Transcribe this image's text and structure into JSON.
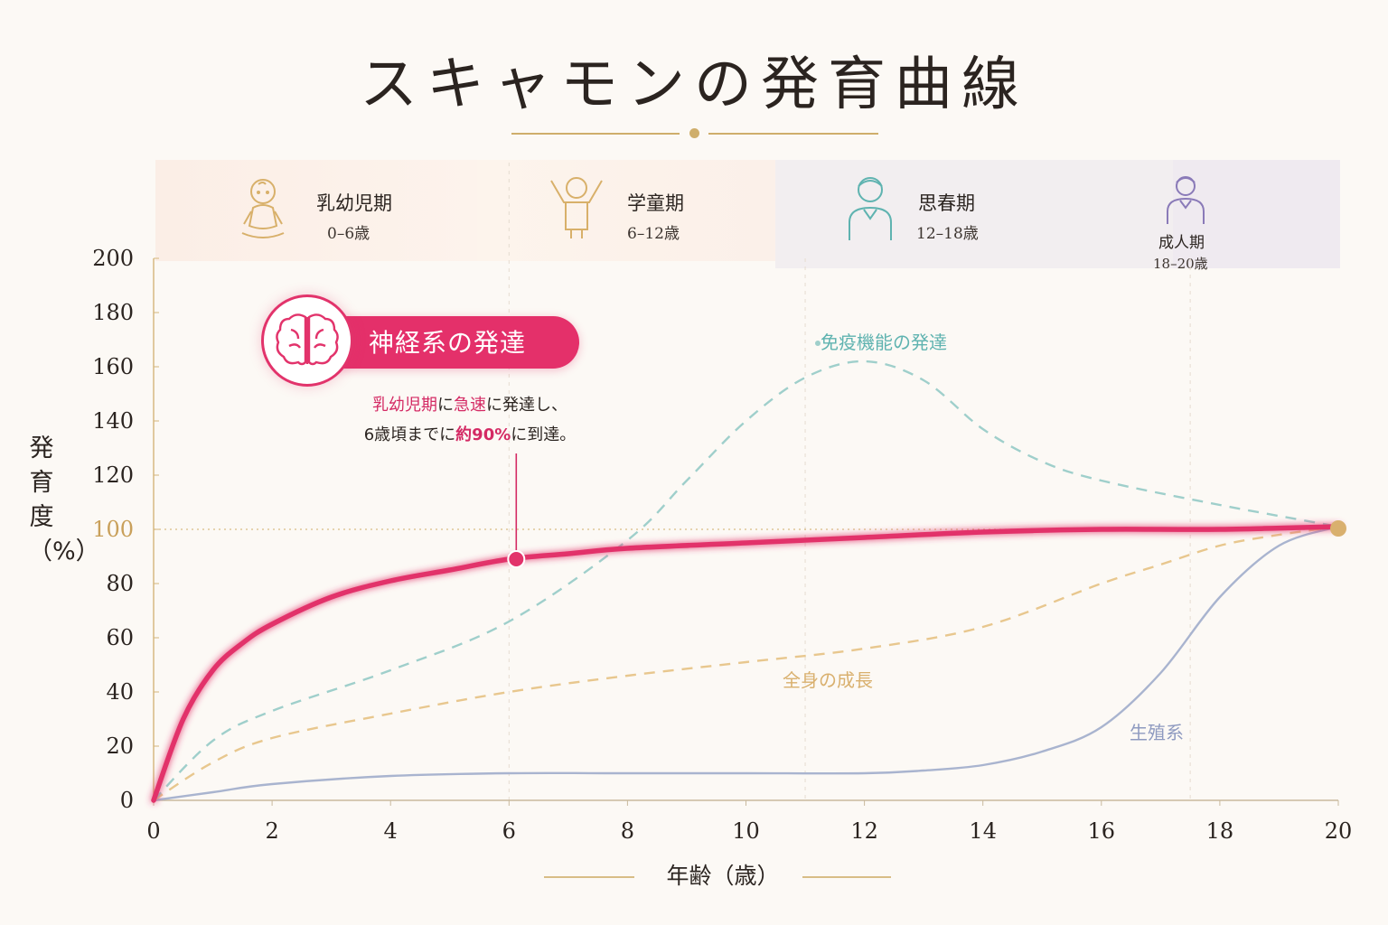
{
  "title": "スキャモンの発育曲線",
  "stages": [
    {
      "title": "乳幼児期",
      "range": "0–6歳",
      "icon": "baby-icon",
      "color": "#d8b06a"
    },
    {
      "title": "学童期",
      "range": "6–12歳",
      "icon": "child-icon",
      "color": "#d8b06a"
    },
    {
      "title": "思春期",
      "range": "12–18歳",
      "icon": "teen-icon",
      "color": "#5fb3b0"
    },
    {
      "title": "成人期",
      "range": "18–20歳",
      "icon": "adult-icon",
      "color": "#8a7ab8"
    }
  ],
  "callout": {
    "heading": "神経系の発達",
    "line1_a": "乳幼児期",
    "line1_b": "に",
    "line1_c": "急速",
    "line1_d": "に発達し、",
    "line2_a": "6歳頃までに",
    "line2_b": "約90%",
    "line2_c": "に到達。",
    "icon": "brain-icon"
  },
  "chart_data": {
    "type": "line",
    "title": "スキャモンの発育曲線",
    "xlabel": "年齢（歳）",
    "ylabel": "発育度（%）",
    "xlim": [
      0,
      20
    ],
    "ylim": [
      0,
      200
    ],
    "x_ticks": [
      0,
      2,
      4,
      6,
      8,
      10,
      12,
      14,
      16,
      18,
      20
    ],
    "y_ticks": [
      0,
      20,
      40,
      60,
      80,
      100,
      120,
      140,
      160,
      180,
      200
    ],
    "reference_line": 100,
    "highlight_point": {
      "x": 6,
      "y": 89
    },
    "endpoint": {
      "x": 20,
      "y": 101
    },
    "series": [
      {
        "name": "神経系の発達",
        "color": "#e2336b",
        "style": "solid",
        "x": [
          0,
          0.5,
          1,
          1.5,
          2,
          3,
          4,
          5,
          6,
          7,
          8,
          10,
          12,
          14,
          16,
          18,
          20
        ],
        "y": [
          0,
          30,
          48,
          58,
          65,
          75,
          81,
          85,
          89,
          91,
          93,
          95,
          97,
          99,
          100,
          100,
          101
        ]
      },
      {
        "name": "免疫機能の発達",
        "color": "#9fcfcb",
        "style": "dashed",
        "x": [
          0,
          1,
          2,
          4,
          6,
          8,
          9,
          10,
          11,
          12,
          13,
          14,
          15,
          16,
          18,
          20
        ],
        "y": [
          0,
          22,
          33,
          48,
          66,
          96,
          118,
          140,
          156,
          162,
          155,
          137,
          125,
          118,
          109,
          101
        ]
      },
      {
        "name": "全身の成長",
        "color": "#e8c78e",
        "style": "dashed",
        "x": [
          0,
          1,
          2,
          4,
          6,
          8,
          10,
          12,
          14,
          16,
          17,
          18,
          19,
          20
        ],
        "y": [
          0,
          14,
          23,
          32,
          40,
          46,
          51,
          56,
          64,
          80,
          87,
          94,
          98,
          101
        ]
      },
      {
        "name": "生殖系",
        "color": "#a9b4cf",
        "style": "solid",
        "x": [
          0,
          1,
          2,
          4,
          6,
          8,
          10,
          12,
          13,
          14,
          15,
          16,
          17,
          18,
          19,
          20
        ],
        "y": [
          0,
          3,
          6,
          9,
          10,
          10,
          10,
          10,
          11,
          13,
          18,
          27,
          47,
          75,
          94,
          101
        ]
      }
    ]
  },
  "series_labels": {
    "immune": "免疫機能の発達",
    "general": "全身の成長",
    "reproductive": "生殖系"
  }
}
